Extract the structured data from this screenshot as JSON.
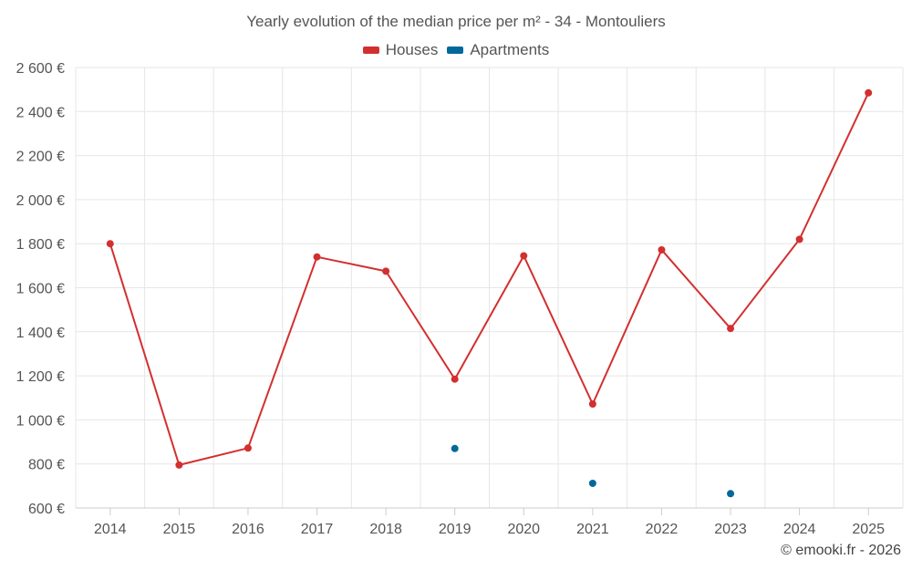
{
  "colors": {
    "houses": "#d32f2f",
    "apartments": "#01689b",
    "grid": "#e6e6e6",
    "axis": "#cccccc"
  },
  "chart_data": {
    "type": "line",
    "title": "Yearly evolution of the median price per m² - 34 - Montouliers",
    "categories": [
      "2014",
      "2015",
      "2016",
      "2017",
      "2018",
      "2019",
      "2020",
      "2021",
      "2022",
      "2023",
      "2024",
      "2025"
    ],
    "y_ticks": [
      "600 €",
      "800 €",
      "1 000 €",
      "1 200 €",
      "1 400 €",
      "1 600 €",
      "1 800 €",
      "2 000 €",
      "2 200 €",
      "2 400 €",
      "2 600 €"
    ],
    "ylim": [
      600,
      2600
    ],
    "grid": true,
    "legend_position": "top-center",
    "series": [
      {
        "name": "Houses",
        "color_key": "houses",
        "connect": true,
        "values": [
          1800,
          795,
          872,
          1740,
          1675,
          1185,
          1745,
          1072,
          1772,
          1415,
          1820,
          2485
        ]
      },
      {
        "name": "Apartments",
        "color_key": "apartments",
        "connect": false,
        "values": [
          null,
          null,
          null,
          null,
          null,
          870,
          null,
          712,
          null,
          665,
          null,
          null
        ]
      }
    ]
  },
  "credit": "© emooki.fr - 2026"
}
